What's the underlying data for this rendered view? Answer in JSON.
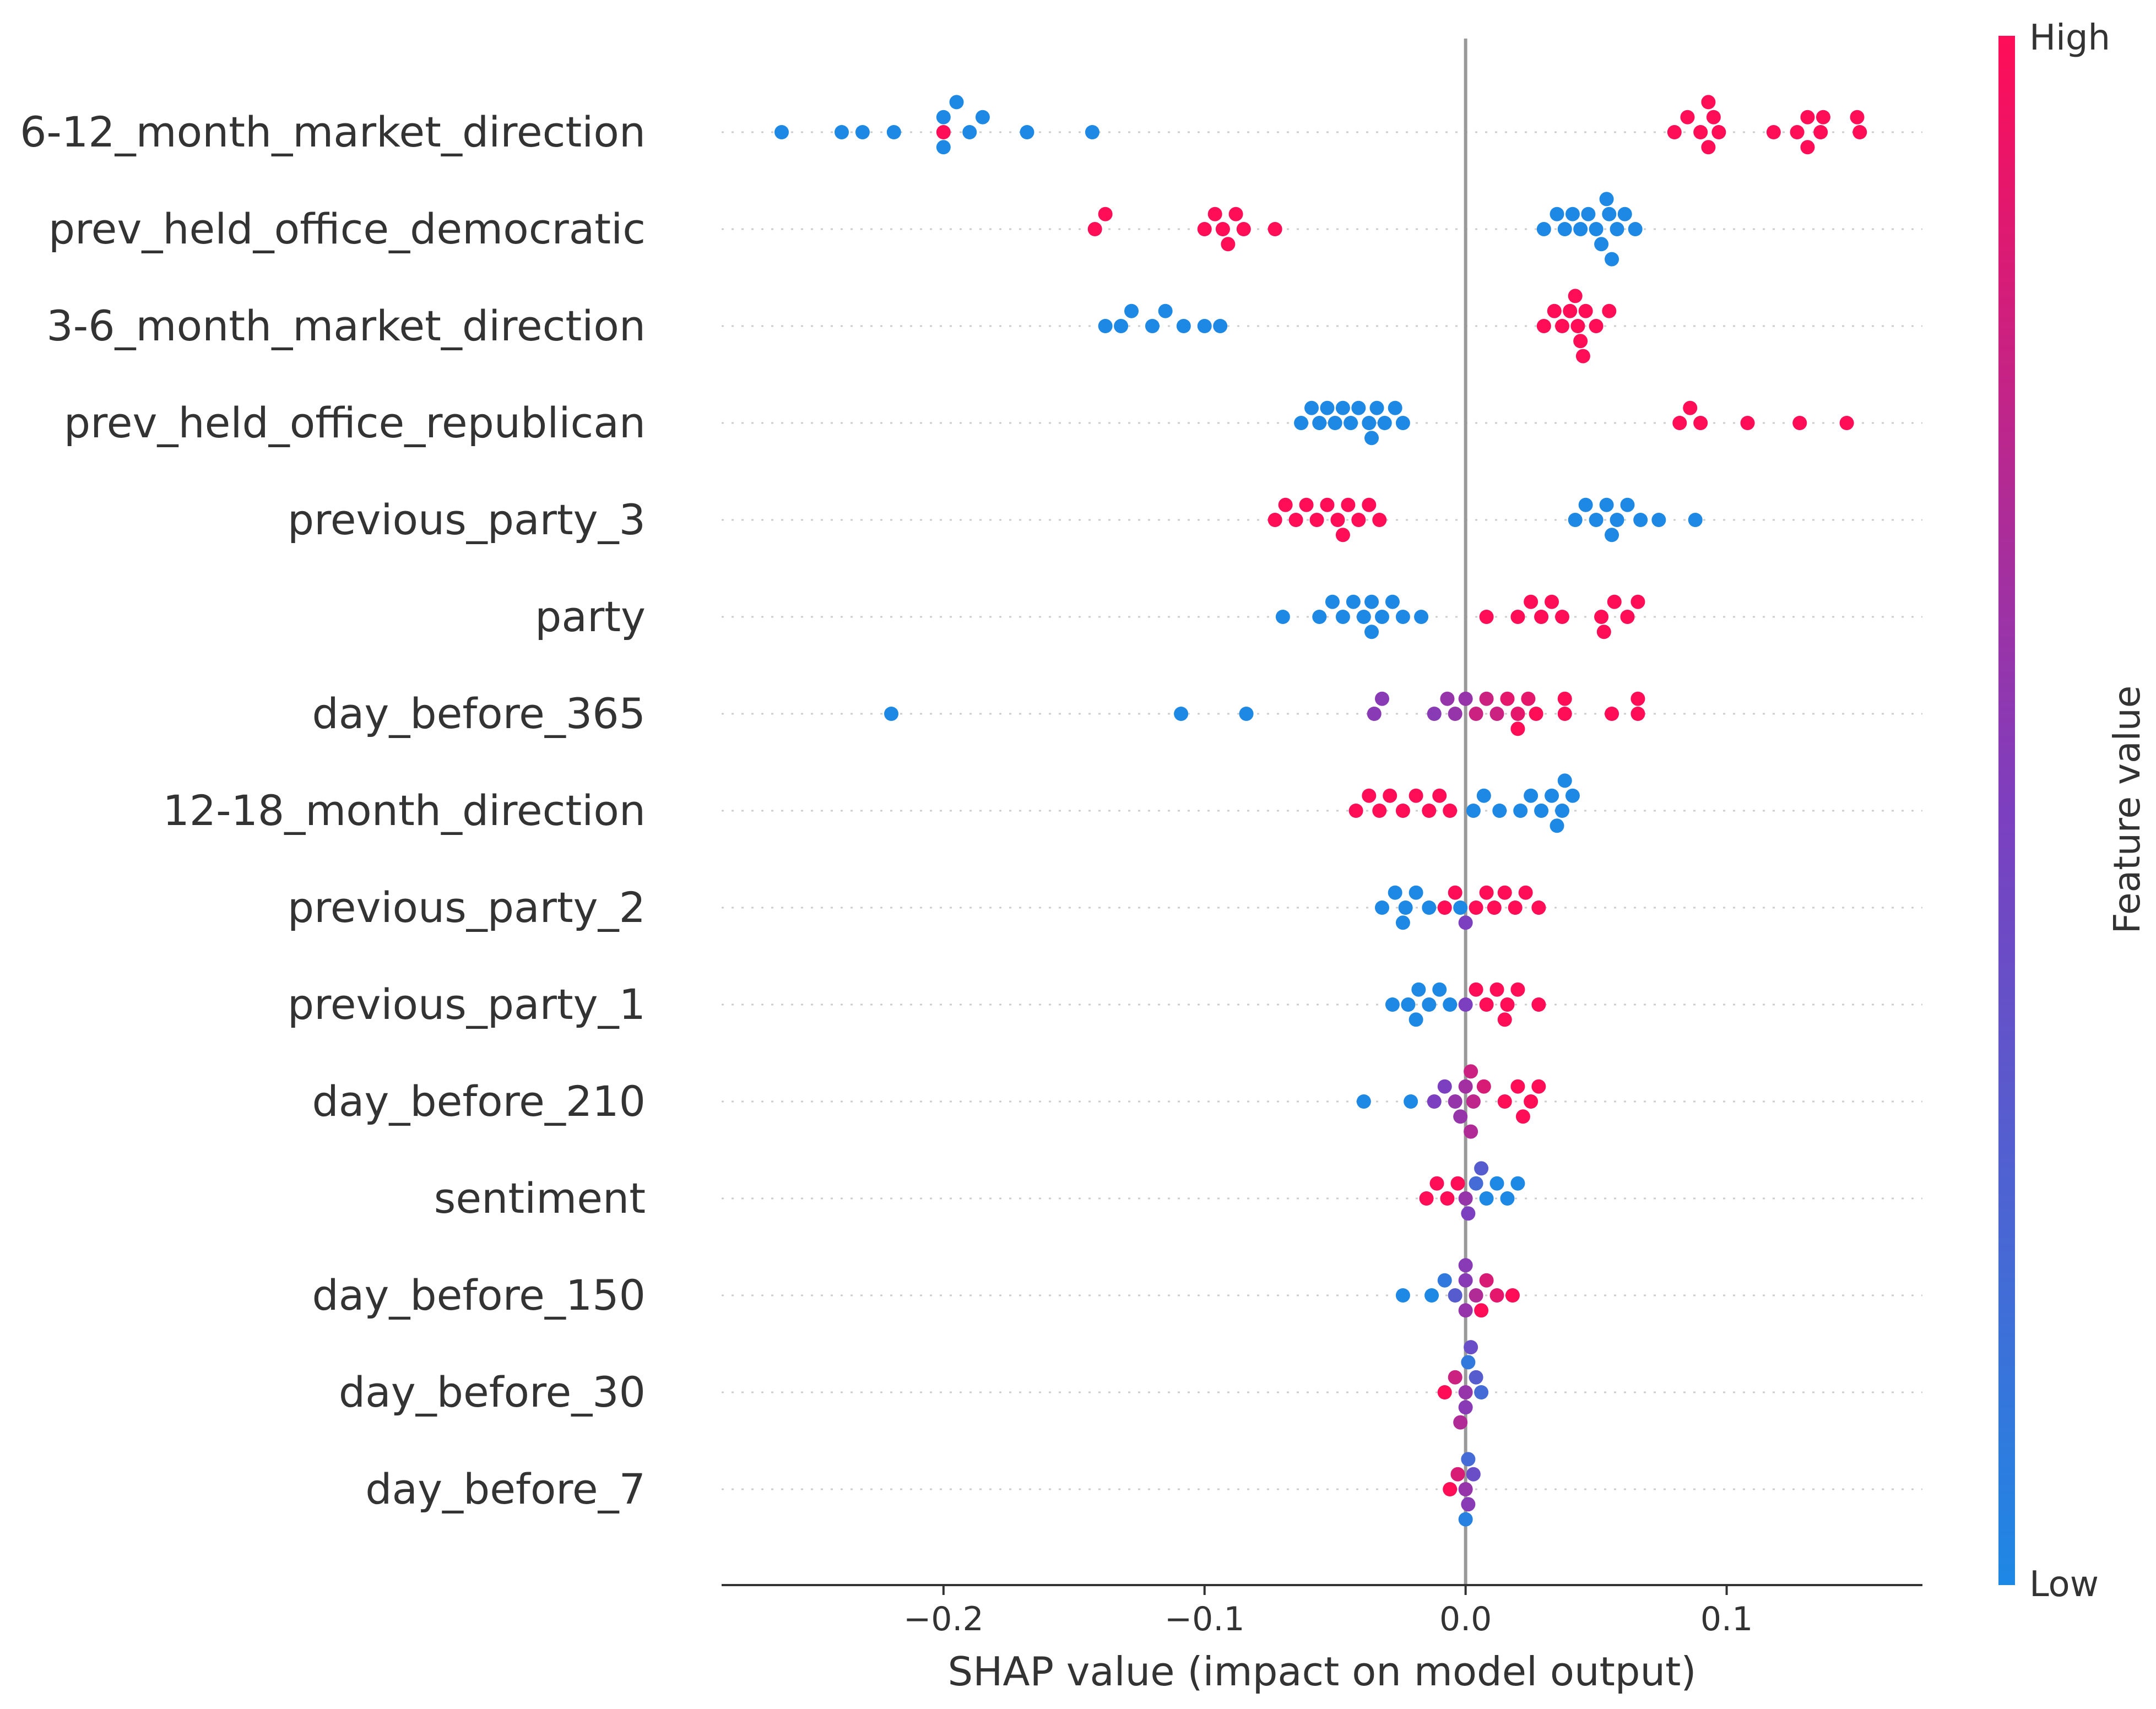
{
  "chart_data": {
    "type": "scatter",
    "subtype": "shap-beeswarm",
    "xlabel": "SHAP value (impact on model output)",
    "xlim": [
      -0.285,
      0.175
    ],
    "xticks": [
      -0.2,
      -0.1,
      0.0,
      0.1
    ],
    "xtick_labels": [
      "−0.2",
      "−0.1",
      "0.0",
      "0.1"
    ],
    "zero_line": true,
    "row_gridlines": "dotted",
    "colorbar": {
      "title": "Feature value",
      "high_label": "High",
      "low_label": "Low",
      "high_color": "#ff0d57",
      "low_color": "#1e88e5"
    },
    "features": [
      {
        "name": "6-12_month_market_direction",
        "points": [
          [
            -0.262,
            0.0
          ],
          [
            -0.239,
            0.0
          ],
          [
            -0.231,
            0.0
          ],
          [
            -0.219,
            0.0
          ],
          [
            -0.2,
            1.0
          ],
          [
            -0.2,
            0.0
          ],
          [
            -0.2,
            0.0
          ],
          [
            -0.195,
            0.0
          ],
          [
            -0.19,
            0.0
          ],
          [
            -0.185,
            0.0
          ],
          [
            -0.168,
            0.0
          ],
          [
            -0.143,
            0.0
          ],
          [
            0.08,
            1.0
          ],
          [
            0.085,
            1.0
          ],
          [
            0.09,
            1.0
          ],
          [
            0.095,
            1.0
          ],
          [
            0.093,
            1.0
          ],
          [
            0.097,
            1.0
          ],
          [
            0.093,
            1.0
          ],
          [
            0.118,
            1.0
          ],
          [
            0.127,
            1.0
          ],
          [
            0.131,
            1.0
          ],
          [
            0.136,
            1.0
          ],
          [
            0.131,
            1.0
          ],
          [
            0.137,
            1.0
          ],
          [
            0.151,
            1.0
          ],
          [
            0.15,
            1.0
          ]
        ]
      },
      {
        "name": "prev_held_office_democratic",
        "points": [
          [
            -0.142,
            1.0
          ],
          [
            -0.138,
            1.0
          ],
          [
            -0.1,
            1.0
          ],
          [
            -0.096,
            1.0
          ],
          [
            -0.093,
            1.0
          ],
          [
            -0.091,
            1.0
          ],
          [
            -0.088,
            1.0
          ],
          [
            -0.085,
            1.0
          ],
          [
            -0.073,
            1.0
          ],
          [
            0.03,
            0.0
          ],
          [
            0.035,
            0.0
          ],
          [
            0.038,
            0.0
          ],
          [
            0.041,
            0.0
          ],
          [
            0.044,
            0.0
          ],
          [
            0.047,
            0.0
          ],
          [
            0.05,
            0.0
          ],
          [
            0.052,
            0.0
          ],
          [
            0.055,
            0.0
          ],
          [
            0.058,
            0.0
          ],
          [
            0.061,
            0.0
          ],
          [
            0.065,
            0.0
          ],
          [
            0.054,
            0.0
          ],
          [
            0.056,
            0.0
          ]
        ]
      },
      {
        "name": "3-6_month_market_direction",
        "points": [
          [
            -0.138,
            0.0
          ],
          [
            -0.132,
            0.0
          ],
          [
            -0.128,
            0.0
          ],
          [
            -0.12,
            0.0
          ],
          [
            -0.115,
            0.0
          ],
          [
            -0.108,
            0.0
          ],
          [
            -0.1,
            0.0
          ],
          [
            -0.094,
            0.0
          ],
          [
            0.03,
            1.0
          ],
          [
            0.034,
            1.0
          ],
          [
            0.037,
            1.0
          ],
          [
            0.04,
            1.0
          ],
          [
            0.043,
            1.0
          ],
          [
            0.046,
            1.0
          ],
          [
            0.05,
            1.0
          ],
          [
            0.055,
            1.0
          ],
          [
            0.044,
            1.0
          ],
          [
            0.042,
            1.0
          ],
          [
            0.045,
            1.0
          ]
        ]
      },
      {
        "name": "prev_held_office_republican",
        "points": [
          [
            -0.063,
            0.0
          ],
          [
            -0.059,
            0.0
          ],
          [
            -0.056,
            0.0
          ],
          [
            -0.053,
            0.0
          ],
          [
            -0.05,
            0.0
          ],
          [
            -0.047,
            0.0
          ],
          [
            -0.044,
            0.0
          ],
          [
            -0.041,
            0.0
          ],
          [
            -0.037,
            0.0
          ],
          [
            -0.034,
            0.0
          ],
          [
            -0.031,
            0.0
          ],
          [
            -0.027,
            0.0
          ],
          [
            -0.024,
            0.0
          ],
          [
            -0.036,
            0.0
          ],
          [
            0.082,
            1.0
          ],
          [
            0.086,
            1.0
          ],
          [
            0.09,
            1.0
          ],
          [
            0.108,
            1.0
          ],
          [
            0.128,
            1.0
          ],
          [
            0.146,
            1.0
          ]
        ]
      },
      {
        "name": "previous_party_3",
        "points": [
          [
            -0.073,
            1.0
          ],
          [
            -0.069,
            1.0
          ],
          [
            -0.065,
            1.0
          ],
          [
            -0.061,
            1.0
          ],
          [
            -0.057,
            1.0
          ],
          [
            -0.053,
            1.0
          ],
          [
            -0.049,
            1.0
          ],
          [
            -0.045,
            1.0
          ],
          [
            -0.041,
            1.0
          ],
          [
            -0.037,
            1.0
          ],
          [
            -0.033,
            1.0
          ],
          [
            -0.047,
            1.0
          ],
          [
            0.042,
            0.0
          ],
          [
            0.046,
            0.0
          ],
          [
            0.05,
            0.0
          ],
          [
            0.054,
            0.0
          ],
          [
            0.058,
            0.0
          ],
          [
            0.062,
            0.0
          ],
          [
            0.067,
            0.0
          ],
          [
            0.074,
            0.0
          ],
          [
            0.088,
            0.0
          ],
          [
            0.056,
            0.0
          ]
        ]
      },
      {
        "name": "party",
        "points": [
          [
            -0.07,
            0.0
          ],
          [
            -0.056,
            0.0
          ],
          [
            -0.051,
            0.0
          ],
          [
            -0.047,
            0.0
          ],
          [
            -0.043,
            0.0
          ],
          [
            -0.039,
            0.0
          ],
          [
            -0.036,
            0.0
          ],
          [
            -0.032,
            0.0
          ],
          [
            -0.028,
            0.0
          ],
          [
            -0.024,
            0.0
          ],
          [
            -0.017,
            0.0
          ],
          [
            -0.036,
            0.0
          ],
          [
            0.008,
            1.0
          ],
          [
            0.02,
            1.0
          ],
          [
            0.025,
            1.0
          ],
          [
            0.029,
            1.0
          ],
          [
            0.033,
            1.0
          ],
          [
            0.037,
            1.0
          ],
          [
            0.052,
            1.0
          ],
          [
            0.057,
            1.0
          ],
          [
            0.062,
            1.0
          ],
          [
            0.066,
            1.0
          ],
          [
            0.053,
            1.0
          ]
        ]
      },
      {
        "name": "day_before_365",
        "points": [
          [
            -0.22,
            0.0
          ],
          [
            -0.109,
            0.0
          ],
          [
            -0.084,
            0.0
          ],
          [
            -0.035,
            0.55
          ],
          [
            -0.032,
            0.55
          ],
          [
            -0.012,
            0.55
          ],
          [
            -0.007,
            0.6
          ],
          [
            -0.004,
            0.6
          ],
          [
            0.0,
            0.6
          ],
          [
            0.004,
            0.8
          ],
          [
            0.008,
            0.8
          ],
          [
            0.012,
            0.8
          ],
          [
            0.016,
            0.9
          ],
          [
            0.02,
            0.9
          ],
          [
            0.024,
            0.9
          ],
          [
            0.027,
            1.0
          ],
          [
            0.02,
            1.0
          ],
          [
            0.038,
            1.0
          ],
          [
            0.038,
            1.0
          ],
          [
            0.056,
            1.0
          ],
          [
            0.066,
            1.0
          ],
          [
            0.066,
            1.0
          ]
        ]
      },
      {
        "name": "12-18_month_direction",
        "points": [
          [
            -0.042,
            1.0
          ],
          [
            -0.037,
            1.0
          ],
          [
            -0.033,
            1.0
          ],
          [
            -0.029,
            1.0
          ],
          [
            -0.024,
            1.0
          ],
          [
            -0.019,
            1.0
          ],
          [
            -0.014,
            1.0
          ],
          [
            -0.01,
            1.0
          ],
          [
            -0.006,
            1.0
          ],
          [
            0.003,
            0.0
          ],
          [
            0.007,
            0.0
          ],
          [
            0.013,
            0.0
          ],
          [
            0.021,
            0.0
          ],
          [
            0.025,
            0.0
          ],
          [
            0.029,
            0.0
          ],
          [
            0.033,
            0.0
          ],
          [
            0.037,
            0.0
          ],
          [
            0.041,
            0.0
          ],
          [
            0.035,
            0.0
          ],
          [
            0.038,
            0.0
          ]
        ]
      },
      {
        "name": "previous_party_2",
        "points": [
          [
            -0.032,
            0.0
          ],
          [
            -0.027,
            0.0
          ],
          [
            -0.023,
            0.0
          ],
          [
            -0.019,
            0.0
          ],
          [
            -0.014,
            0.0
          ],
          [
            -0.024,
            0.0
          ],
          [
            -0.002,
            0.0
          ],
          [
            -0.008,
            1.0
          ],
          [
            -0.004,
            1.0
          ],
          [
            0.0,
            0.5
          ],
          [
            0.004,
            1.0
          ],
          [
            0.008,
            1.0
          ],
          [
            0.011,
            1.0
          ],
          [
            0.015,
            1.0
          ],
          [
            0.019,
            1.0
          ],
          [
            0.023,
            1.0
          ],
          [
            0.028,
            1.0
          ]
        ]
      },
      {
        "name": "previous_party_1",
        "points": [
          [
            -0.028,
            0.0
          ],
          [
            -0.022,
            0.0
          ],
          [
            -0.018,
            0.0
          ],
          [
            -0.014,
            0.0
          ],
          [
            -0.01,
            0.0
          ],
          [
            -0.006,
            0.0
          ],
          [
            -0.019,
            0.0
          ],
          [
            0.0,
            0.5
          ],
          [
            0.004,
            1.0
          ],
          [
            0.008,
            1.0
          ],
          [
            0.012,
            1.0
          ],
          [
            0.016,
            1.0
          ],
          [
            0.02,
            1.0
          ],
          [
            0.028,
            1.0
          ],
          [
            0.015,
            1.0
          ]
        ]
      },
      {
        "name": "day_before_210",
        "points": [
          [
            -0.039,
            0.0
          ],
          [
            -0.021,
            0.0
          ],
          [
            -0.012,
            0.5
          ],
          [
            -0.008,
            0.5
          ],
          [
            -0.004,
            0.6
          ],
          [
            0.0,
            0.65
          ],
          [
            0.003,
            0.75
          ],
          [
            0.007,
            0.85
          ],
          [
            -0.002,
            0.6
          ],
          [
            0.002,
            0.8
          ],
          [
            0.002,
            0.7
          ],
          [
            0.015,
            1.0
          ],
          [
            0.02,
            1.0
          ],
          [
            0.025,
            1.0
          ],
          [
            0.022,
            1.0
          ],
          [
            0.028,
            1.0
          ]
        ]
      },
      {
        "name": "sentiment",
        "points": [
          [
            -0.015,
            1.0
          ],
          [
            -0.011,
            1.0
          ],
          [
            -0.007,
            1.0
          ],
          [
            -0.003,
            1.0
          ],
          [
            0.0,
            0.6
          ],
          [
            0.004,
            0.2
          ],
          [
            0.008,
            0.0
          ],
          [
            0.012,
            0.0
          ],
          [
            0.016,
            0.0
          ],
          [
            0.02,
            0.0
          ],
          [
            0.001,
            0.5
          ],
          [
            0.006,
            0.3
          ]
        ]
      },
      {
        "name": "day_before_150",
        "points": [
          [
            -0.024,
            0.0
          ],
          [
            -0.013,
            0.0
          ],
          [
            -0.008,
            0.1
          ],
          [
            -0.004,
            0.3
          ],
          [
            0.0,
            0.55
          ],
          [
            0.004,
            0.7
          ],
          [
            0.008,
            0.85
          ],
          [
            0.012,
            0.9
          ],
          [
            0.018,
            1.0
          ],
          [
            0.0,
            0.6
          ],
          [
            0.006,
            1.0
          ],
          [
            0.0,
            0.55
          ]
        ]
      },
      {
        "name": "day_before_30",
        "points": [
          [
            -0.008,
            1.0
          ],
          [
            -0.004,
            0.8
          ],
          [
            0.0,
            0.6
          ],
          [
            0.004,
            0.3
          ],
          [
            0.006,
            0.2
          ],
          [
            0.0,
            0.55
          ],
          [
            0.001,
            0.1
          ],
          [
            -0.002,
            0.7
          ],
          [
            0.002,
            0.4
          ]
        ]
      },
      {
        "name": "day_before_7",
        "points": [
          [
            -0.006,
            1.0
          ],
          [
            -0.003,
            0.85
          ],
          [
            0.0,
            0.6
          ],
          [
            0.003,
            0.4
          ],
          [
            0.001,
            0.55
          ],
          [
            0.001,
            0.2
          ],
          [
            0.0,
            0.05
          ]
        ]
      }
    ]
  }
}
